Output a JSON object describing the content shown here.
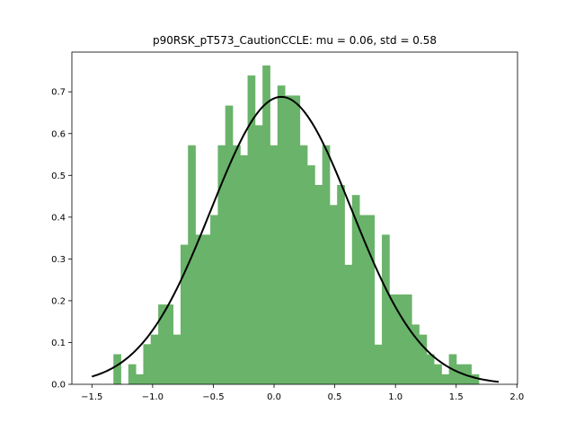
{
  "chart_data": {
    "type": "bar",
    "title": "p90RSK_pT573_CautionCCLE: mu = 0.06, std = 0.58",
    "xlabel": "",
    "ylabel": "",
    "xlim": [
      -1.665,
      2.005
    ],
    "ylim": [
      0.0,
      0.795
    ],
    "xticks": [
      -1.5,
      -1.0,
      -0.5,
      0.0,
      0.5,
      1.0,
      1.5,
      2.0
    ],
    "xtick_labels": [
      "−1.5",
      "−1.0",
      "−0.5",
      "0.0",
      "0.5",
      "1.0",
      "1.5",
      "2.0"
    ],
    "yticks": [
      0.0,
      0.1,
      0.2,
      0.3,
      0.4,
      0.5,
      0.6,
      0.7
    ],
    "ytick_labels": [
      "0.0",
      "0.1",
      "0.2",
      "0.3",
      "0.4",
      "0.5",
      "0.6",
      "0.7"
    ],
    "grid": false,
    "bar_color": "#6ab36a",
    "curve_color": "#000000",
    "histogram": {
      "bin_width": 0.0614,
      "bins": [
        {
          "left": -1.323,
          "value": 0.072
        },
        {
          "left": -1.262,
          "value": 0.0
        },
        {
          "left": -1.2,
          "value": 0.048
        },
        {
          "left": -1.139,
          "value": 0.024
        },
        {
          "left": -1.077,
          "value": 0.096
        },
        {
          "left": -1.016,
          "value": 0.119
        },
        {
          "left": -0.954,
          "value": 0.191
        },
        {
          "left": -0.893,
          "value": 0.191
        },
        {
          "left": -0.832,
          "value": 0.119
        },
        {
          "left": -0.77,
          "value": 0.334
        },
        {
          "left": -0.709,
          "value": 0.572
        },
        {
          "left": -0.647,
          "value": 0.358
        },
        {
          "left": -0.586,
          "value": 0.358
        },
        {
          "left": -0.525,
          "value": 0.405
        },
        {
          "left": -0.463,
          "value": 0.572
        },
        {
          "left": -0.402,
          "value": 0.667
        },
        {
          "left": -0.34,
          "value": 0.572
        },
        {
          "left": -0.279,
          "value": 0.548
        },
        {
          "left": -0.218,
          "value": 0.739
        },
        {
          "left": -0.156,
          "value": 0.62
        },
        {
          "left": -0.095,
          "value": 0.763
        },
        {
          "left": -0.033,
          "value": 0.572
        },
        {
          "left": 0.028,
          "value": 0.715
        },
        {
          "left": 0.09,
          "value": 0.691
        },
        {
          "left": 0.151,
          "value": 0.691
        },
        {
          "left": 0.212,
          "value": 0.572
        },
        {
          "left": 0.274,
          "value": 0.524
        },
        {
          "left": 0.335,
          "value": 0.477
        },
        {
          "left": 0.397,
          "value": 0.572
        },
        {
          "left": 0.458,
          "value": 0.429
        },
        {
          "left": 0.519,
          "value": 0.477
        },
        {
          "left": 0.581,
          "value": 0.286
        },
        {
          "left": 0.642,
          "value": 0.453
        },
        {
          "left": 0.704,
          "value": 0.405
        },
        {
          "left": 0.765,
          "value": 0.405
        },
        {
          "left": 0.826,
          "value": 0.095
        },
        {
          "left": 0.888,
          "value": 0.358
        },
        {
          "left": 0.949,
          "value": 0.215
        },
        {
          "left": 1.011,
          "value": 0.215
        },
        {
          "left": 1.072,
          "value": 0.215
        },
        {
          "left": 1.133,
          "value": 0.143
        },
        {
          "left": 1.195,
          "value": 0.119
        },
        {
          "left": 1.256,
          "value": 0.072
        },
        {
          "left": 1.318,
          "value": 0.048
        },
        {
          "left": 1.379,
          "value": 0.024
        },
        {
          "left": 1.44,
          "value": 0.072
        },
        {
          "left": 1.502,
          "value": 0.048
        },
        {
          "left": 1.563,
          "value": 0.048
        },
        {
          "left": 1.625,
          "value": 0.024
        }
      ]
    },
    "fit_curve": {
      "type": "normal_pdf",
      "mu": 0.06,
      "std": 0.58,
      "x_range": [
        -1.5,
        1.85
      ]
    }
  }
}
